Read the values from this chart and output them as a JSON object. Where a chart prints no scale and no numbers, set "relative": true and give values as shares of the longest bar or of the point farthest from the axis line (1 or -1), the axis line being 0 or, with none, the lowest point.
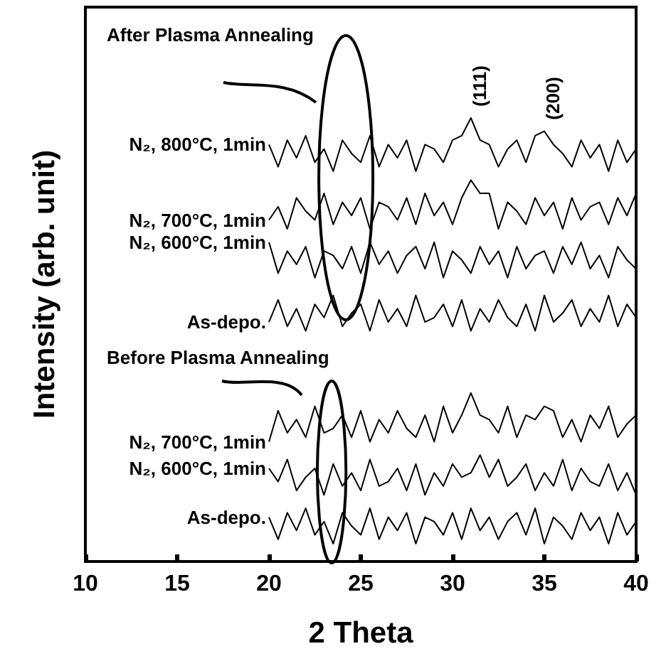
{
  "chart_data": {
    "type": "line",
    "relative": true,
    "xlabel": "2 Theta",
    "ylabel": "Intensity (arb. unit)",
    "xlim": [
      10,
      40
    ],
    "xticks": [
      10,
      15,
      20,
      25,
      30,
      35,
      40
    ],
    "annotations": [
      "After Plasma Annealing",
      "Before Plasma Annealing",
      {
        "text": "(111)",
        "x": 31,
        "y": 1.0
      },
      {
        "text": "(200)",
        "x": 35,
        "y": 0.97
      }
    ],
    "x": [
      20,
      20.5,
      21,
      21.5,
      22,
      22.5,
      23,
      23.5,
      24,
      24.5,
      25,
      25.5,
      26,
      26.5,
      27,
      27.5,
      28,
      28.5,
      29,
      29.5,
      30,
      30.5,
      31,
      31.5,
      32,
      32.5,
      33,
      33.5,
      34,
      34.5,
      35,
      35.5,
      36,
      36.5,
      37,
      37.5,
      38,
      38.5,
      39,
      39.5,
      40
    ],
    "series": [
      {
        "name": "N₂, 800°C, 1min",
        "color": "#000000",
        "values": [
          0.94,
          0.89,
          0.95,
          0.91,
          0.96,
          0.9,
          0.93,
          0.88,
          0.95,
          0.92,
          0.9,
          0.96,
          0.89,
          0.94,
          0.91,
          0.95,
          0.88,
          0.94,
          0.93,
          0.9,
          0.95,
          0.96,
          1.0,
          0.95,
          0.94,
          0.89,
          0.93,
          0.95,
          0.9,
          0.96,
          0.97,
          0.94,
          0.92,
          0.89,
          0.95,
          0.91,
          0.94,
          0.88,
          0.95,
          0.9,
          0.93
        ]
      },
      {
        "name": "N₂, 700°C, 1min",
        "color": "#000000",
        "values": [
          0.77,
          0.8,
          0.75,
          0.82,
          0.79,
          0.77,
          0.83,
          0.76,
          0.81,
          0.78,
          0.82,
          0.75,
          0.81,
          0.8,
          0.77,
          0.82,
          0.76,
          0.83,
          0.78,
          0.81,
          0.76,
          0.82,
          0.86,
          0.83,
          0.83,
          0.75,
          0.81,
          0.79,
          0.76,
          0.82,
          0.78,
          0.81,
          0.75,
          0.82,
          0.77,
          0.8,
          0.81,
          0.76,
          0.82,
          0.78,
          0.83
        ]
      },
      {
        "name": "N₂, 600°C, 1min",
        "color": "#000000",
        "values": [
          0.72,
          0.65,
          0.7,
          0.67,
          0.71,
          0.64,
          0.7,
          0.69,
          0.66,
          0.71,
          0.65,
          0.72,
          0.67,
          0.7,
          0.65,
          0.69,
          0.71,
          0.66,
          0.72,
          0.64,
          0.7,
          0.68,
          0.65,
          0.71,
          0.67,
          0.7,
          0.64,
          0.71,
          0.66,
          0.69,
          0.7,
          0.65,
          0.71,
          0.67,
          0.72,
          0.66,
          0.69,
          0.64,
          0.71,
          0.68,
          0.66
        ]
      },
      {
        "name": "As-depo.",
        "color": "#000000",
        "values": [
          0.54,
          0.59,
          0.53,
          0.57,
          0.52,
          0.58,
          0.55,
          0.6,
          0.53,
          0.56,
          0.58,
          0.52,
          0.59,
          0.54,
          0.57,
          0.53,
          0.6,
          0.54,
          0.55,
          0.58,
          0.53,
          0.59,
          0.52,
          0.57,
          0.54,
          0.59,
          0.55,
          0.53,
          0.58,
          0.52,
          0.6,
          0.54,
          0.56,
          0.59,
          0.53,
          0.57,
          0.54,
          0.6,
          0.53,
          0.58,
          0.55
        ]
      },
      {
        "name": "N₂, 700°C, 1min",
        "color": "#000000",
        "values": [
          0.27,
          0.34,
          0.29,
          0.32,
          0.28,
          0.35,
          0.29,
          0.3,
          0.33,
          0.28,
          0.34,
          0.27,
          0.32,
          0.29,
          0.34,
          0.3,
          0.28,
          0.33,
          0.27,
          0.35,
          0.29,
          0.33,
          0.38,
          0.33,
          0.32,
          0.29,
          0.35,
          0.28,
          0.33,
          0.32,
          0.35,
          0.34,
          0.28,
          0.32,
          0.27,
          0.33,
          0.3,
          0.35,
          0.28,
          0.31,
          0.33
        ]
      },
      {
        "name": "N₂, 600°C, 1min",
        "color": "#000000",
        "values": [
          0.21,
          0.18,
          0.23,
          0.16,
          0.19,
          0.21,
          0.15,
          0.22,
          0.17,
          0.2,
          0.16,
          0.23,
          0.17,
          0.18,
          0.21,
          0.16,
          0.22,
          0.15,
          0.2,
          0.17,
          0.22,
          0.19,
          0.2,
          0.24,
          0.19,
          0.23,
          0.17,
          0.19,
          0.22,
          0.16,
          0.2,
          0.17,
          0.23,
          0.16,
          0.21,
          0.18,
          0.17,
          0.22,
          0.16,
          0.2,
          0.15
        ]
      },
      {
        "name": "As-depo.",
        "color": "#000000",
        "values": [
          0.1,
          0.05,
          0.11,
          0.07,
          0.12,
          0.06,
          0.09,
          0.04,
          0.11,
          0.08,
          0.06,
          0.12,
          0.05,
          0.1,
          0.07,
          0.11,
          0.04,
          0.1,
          0.09,
          0.06,
          0.11,
          0.05,
          0.12,
          0.07,
          0.1,
          0.05,
          0.09,
          0.11,
          0.06,
          0.12,
          0.04,
          0.1,
          0.08,
          0.05,
          0.11,
          0.07,
          0.1,
          0.04,
          0.11,
          0.06,
          0.09
        ]
      }
    ]
  }
}
